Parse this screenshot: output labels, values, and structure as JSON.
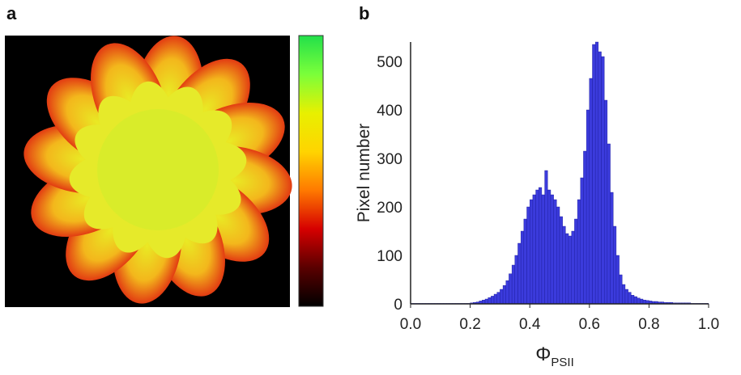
{
  "panels": {
    "a": {
      "label": "a"
    },
    "b": {
      "label": "b"
    }
  },
  "colorbar": {
    "colors": [
      "#000000",
      "#5a0000",
      "#d60000",
      "#ff7a00",
      "#ffd400",
      "#e8f000",
      "#7bff3a",
      "#22e04a"
    ]
  },
  "image_panel": {
    "description_colors": [
      "#e23b12",
      "#f07a18",
      "#f3b71c",
      "#e9ea24",
      "#c6e92a",
      "#000000"
    ]
  },
  "chart_data": {
    "type": "bar",
    "xlabel": "Φ",
    "xlabel_sub": "PSII",
    "ylabel": "Pixel number",
    "xlim": [
      0.0,
      1.0
    ],
    "ylim": [
      0,
      540
    ],
    "xticks": [
      "0.0",
      "0.2",
      "0.4",
      "0.6",
      "0.8",
      "1.0"
    ],
    "yticks": [
      "0",
      "100",
      "200",
      "300",
      "400",
      "500"
    ],
    "bar_color": "#3b3bdc",
    "bin_start": 0.0,
    "bin_width": 0.01,
    "values": [
      1,
      1,
      1,
      1,
      1,
      1,
      1,
      1,
      1,
      1,
      1,
      1,
      1,
      1,
      1,
      1,
      1,
      1,
      1,
      1,
      2,
      3,
      4,
      6,
      8,
      10,
      13,
      16,
      20,
      24,
      30,
      38,
      48,
      62,
      80,
      100,
      125,
      150,
      175,
      200,
      215,
      225,
      235,
      240,
      225,
      275,
      235,
      225,
      215,
      200,
      180,
      160,
      145,
      140,
      150,
      175,
      215,
      260,
      315,
      400,
      465,
      535,
      540,
      520,
      510,
      420,
      330,
      230,
      160,
      100,
      60,
      40,
      30,
      24,
      18,
      15,
      12,
      10,
      8,
      7,
      6,
      5,
      5,
      4,
      4,
      3,
      3,
      3,
      2,
      2,
      2,
      2,
      2,
      2,
      1,
      1,
      1,
      1,
      1,
      1
    ]
  }
}
